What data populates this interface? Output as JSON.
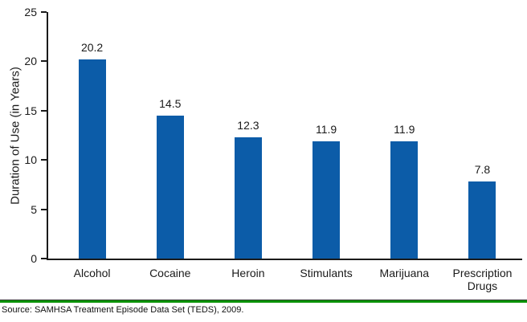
{
  "chart_data": {
    "type": "bar",
    "categories": [
      "Alcohol",
      "Cocaine",
      "Heroin",
      "Stimulants",
      "Marijuana",
      "Prescription Drugs"
    ],
    "values": [
      20.2,
      14.5,
      12.3,
      11.9,
      11.9,
      7.8
    ],
    "value_labels": [
      "20.2",
      "14.5",
      "12.3",
      "11.9",
      "11.9",
      "7.8"
    ],
    "title": "",
    "xlabel": "",
    "ylabel": "Duration of Use (in Years)",
    "ylim": [
      0,
      25
    ],
    "yticks": [
      0,
      5,
      10,
      15,
      20,
      25
    ],
    "grid": false,
    "legend": false,
    "bar_color": "#0C5CA8",
    "axis_color": "#1a1a1a",
    "separator_color": "#0A9305",
    "source": "Source: SAMHSA Treatment Episode Data Set (TEDS), 2009."
  }
}
